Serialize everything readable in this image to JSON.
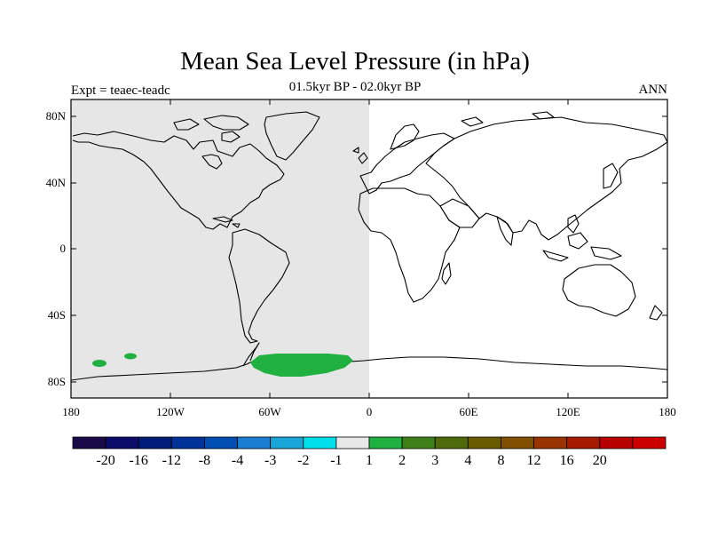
{
  "title": "Mean Sea Level Pressure (in hPa)",
  "subtitle": "01.5kyr BP - 02.0kyr BP",
  "left_label": "Expt = teaec-teadc",
  "right_label": "ANN",
  "lat_ticks": [
    "80N",
    "40N",
    "0",
    "40S",
    "80S"
  ],
  "lon_ticks": [
    "180",
    "120W",
    "60W",
    "0",
    "60E",
    "120E",
    "180"
  ],
  "colorbar": {
    "colors": [
      "#1a0a4a",
      "#0c0c6a",
      "#001b7a",
      "#003399",
      "#004db3",
      "#1a7fd0",
      "#1aa6d9",
      "#00e0ec",
      "#e8e8e8",
      "#1fb040",
      "#3f7f1a",
      "#4f6a0a",
      "#6a5a00",
      "#805000",
      "#993300",
      "#a61a00",
      "#b80000",
      "#cc0000"
    ],
    "labels": [
      "-20",
      "-16",
      "-12",
      "-8",
      "-4",
      "-3",
      "-2",
      "-1",
      "1",
      "2",
      "3",
      "4",
      "8",
      "12",
      "16",
      "20"
    ]
  },
  "colors": {
    "neutral_shade": "#e6e6e6",
    "positive_1_2": "#1fb040"
  }
}
